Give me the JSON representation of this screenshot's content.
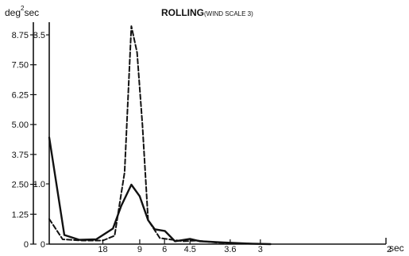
{
  "chart_data": {
    "type": "line",
    "title": "ROLLING",
    "title_note": "(WIND SCALE 3)",
    "ylabel_unit": "deg",
    "ylabel_exp": "2",
    "ylabel_suffix": "sec",
    "xlabel": "sec",
    "ylim": [
      0,
      9.0
    ],
    "outer_y_ticks": [
      "0",
      "1.25",
      "2.50",
      "3.75",
      "5.00",
      "6.25",
      "7.50",
      "8.75"
    ],
    "inner_y_ticks": [
      "0",
      "1.0",
      "3.5"
    ],
    "x_ticks": [
      "18",
      "9",
      "6",
      "4.5",
      "3.6",
      "3",
      "2"
    ],
    "x_tick_pos": [
      0.16,
      0.27,
      0.344,
      0.42,
      0.54,
      0.63,
      1.0
    ],
    "grid": false,
    "legend": "none",
    "series": [
      {
        "style": "solid",
        "values": [
          [
            0.0,
            4.45
          ],
          [
            0.045,
            0.38
          ],
          [
            0.09,
            0.18
          ],
          [
            0.14,
            0.2
          ],
          [
            0.19,
            0.65
          ],
          [
            0.215,
            1.6
          ],
          [
            0.245,
            2.48
          ],
          [
            0.27,
            2.0
          ],
          [
            0.295,
            1.0
          ],
          [
            0.315,
            0.62
          ],
          [
            0.345,
            0.55
          ],
          [
            0.375,
            0.12
          ],
          [
            0.42,
            0.22
          ],
          [
            0.45,
            0.12
          ],
          [
            0.52,
            0.07
          ],
          [
            0.6,
            0.02
          ],
          [
            0.66,
            0.0
          ]
        ]
      },
      {
        "style": "dashed",
        "values": [
          [
            0.0,
            1.05
          ],
          [
            0.04,
            0.2
          ],
          [
            0.1,
            0.15
          ],
          [
            0.16,
            0.15
          ],
          [
            0.195,
            0.35
          ],
          [
            0.225,
            3.0
          ],
          [
            0.245,
            9.1
          ],
          [
            0.262,
            8.0
          ],
          [
            0.278,
            5.0
          ],
          [
            0.295,
            1.0
          ],
          [
            0.33,
            0.25
          ],
          [
            0.4,
            0.12
          ],
          [
            0.44,
            0.15
          ],
          [
            0.5,
            0.06
          ],
          [
            0.6,
            0.02
          ],
          [
            0.65,
            0.0
          ]
        ]
      }
    ]
  }
}
